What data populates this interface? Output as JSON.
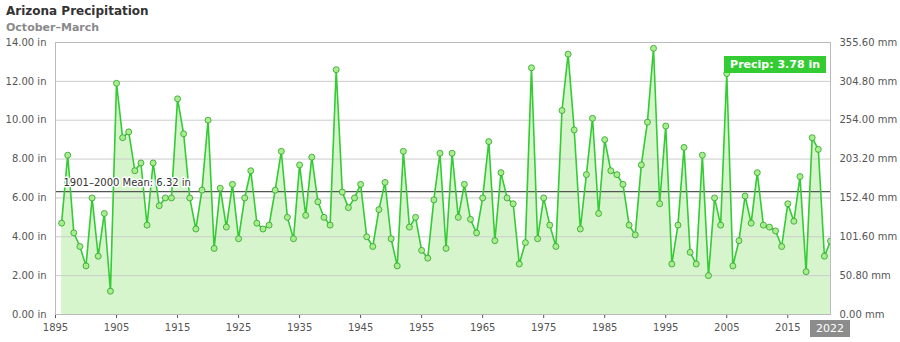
{
  "chart_data": {
    "type": "line",
    "title": "Arizona Precipitation",
    "subtitle": "October–March",
    "x": [
      1896,
      1897,
      1898,
      1899,
      1900,
      1901,
      1902,
      1903,
      1904,
      1905,
      1906,
      1907,
      1908,
      1909,
      1910,
      1911,
      1912,
      1913,
      1914,
      1915,
      1916,
      1917,
      1918,
      1919,
      1920,
      1921,
      1922,
      1923,
      1924,
      1925,
      1926,
      1927,
      1928,
      1929,
      1930,
      1931,
      1932,
      1933,
      1934,
      1935,
      1936,
      1937,
      1938,
      1939,
      1940,
      1941,
      1942,
      1943,
      1944,
      1945,
      1946,
      1947,
      1948,
      1949,
      1950,
      1951,
      1952,
      1953,
      1954,
      1955,
      1956,
      1957,
      1958,
      1959,
      1960,
      1961,
      1962,
      1963,
      1964,
      1965,
      1966,
      1967,
      1968,
      1969,
      1970,
      1971,
      1972,
      1973,
      1974,
      1975,
      1976,
      1977,
      1978,
      1979,
      1980,
      1981,
      1982,
      1983,
      1984,
      1985,
      1986,
      1987,
      1988,
      1989,
      1990,
      1991,
      1992,
      1993,
      1994,
      1995,
      1996,
      1997,
      1998,
      1999,
      2000,
      2001,
      2002,
      2003,
      2004,
      2005,
      2006,
      2007,
      2008,
      2009,
      2010,
      2011,
      2012,
      2013,
      2014,
      2015,
      2016,
      2017,
      2018,
      2019,
      2020,
      2021,
      2022
    ],
    "series": [
      {
        "name": "Precip",
        "color": "#33cc33",
        "marker": "circle",
        "values": [
          4.7,
          8.2,
          4.2,
          3.5,
          2.5,
          6.0,
          3.0,
          5.2,
          1.2,
          11.9,
          9.1,
          9.4,
          7.4,
          7.8,
          4.6,
          7.8,
          5.6,
          6.0,
          6.0,
          11.1,
          9.3,
          6.0,
          4.4,
          6.4,
          10.0,
          3.4,
          6.5,
          4.5,
          6.7,
          3.9,
          6.0,
          7.4,
          4.7,
          4.4,
          4.6,
          6.4,
          8.4,
          5.0,
          3.9,
          7.7,
          5.1,
          8.1,
          5.8,
          5.0,
          4.6,
          12.6,
          6.3,
          5.5,
          6.0,
          6.7,
          4.0,
          3.5,
          5.4,
          6.8,
          3.9,
          2.5,
          8.4,
          4.5,
          5.0,
          3.3,
          2.9,
          5.9,
          8.3,
          3.4,
          8.3,
          5.0,
          6.7,
          4.9,
          4.2,
          6.0,
          8.9,
          3.8,
          7.3,
          6.0,
          5.7,
          2.6,
          3.7,
          12.7,
          3.9,
          6.0,
          4.6,
          3.5,
          10.5,
          13.4,
          9.5,
          4.4,
          7.2,
          10.1,
          5.2,
          9.0,
          7.4,
          7.2,
          6.7,
          4.6,
          4.1,
          7.7,
          9.9,
          13.7,
          5.7,
          9.7,
          2.6,
          4.6,
          8.6,
          3.2,
          2.6,
          8.2,
          2.0,
          6.0,
          4.6,
          12.4,
          2.5,
          3.8,
          6.1,
          4.7,
          7.3,
          4.6,
          4.5,
          4.3,
          3.5,
          5.7,
          4.8,
          7.1,
          2.2,
          9.1,
          8.5,
          3.0,
          3.78
        ]
      }
    ],
    "xlim": [
      1895,
      2022
    ],
    "xticks": [
      1895,
      1905,
      1915,
      1925,
      1935,
      1945,
      1955,
      1965,
      1975,
      1985,
      1995,
      2005,
      2015
    ],
    "ylim": [
      0,
      14
    ],
    "yticks": [
      {
        "value": 0,
        "label": "0.00 in"
      },
      {
        "value": 2,
        "label": "2.00 in"
      },
      {
        "value": 4,
        "label": "4.00 in"
      },
      {
        "value": 6,
        "label": "6.00 in"
      },
      {
        "value": 8,
        "label": "8.00 in"
      },
      {
        "value": 10,
        "label": "10.00 in"
      },
      {
        "value": 12,
        "label": "12.00 in"
      },
      {
        "value": 14,
        "label": "14.00 in"
      }
    ],
    "y2lim": [
      0,
      355.6
    ],
    "y2ticks": [
      {
        "value": 0,
        "label": "0.00 mm"
      },
      {
        "value": 50.8,
        "label": "50.80 mm"
      },
      {
        "value": 101.6,
        "label": "101.60 mm"
      },
      {
        "value": 152.4,
        "label": "152.40 mm"
      },
      {
        "value": 203.2,
        "label": "203.20 mm"
      },
      {
        "value": 254,
        "label": "254.00 mm"
      },
      {
        "value": 304.8,
        "label": "304.80 mm"
      },
      {
        "value": 355.6,
        "label": "355.60 mm"
      }
    ],
    "grid": true,
    "mean": {
      "value": 6.32,
      "label": "1901–2000 Mean: 6.32 in"
    },
    "highlight": {
      "x": 2022,
      "value": 3.78,
      "label": "Precip: 3.78 in",
      "x_label": "2022"
    }
  }
}
